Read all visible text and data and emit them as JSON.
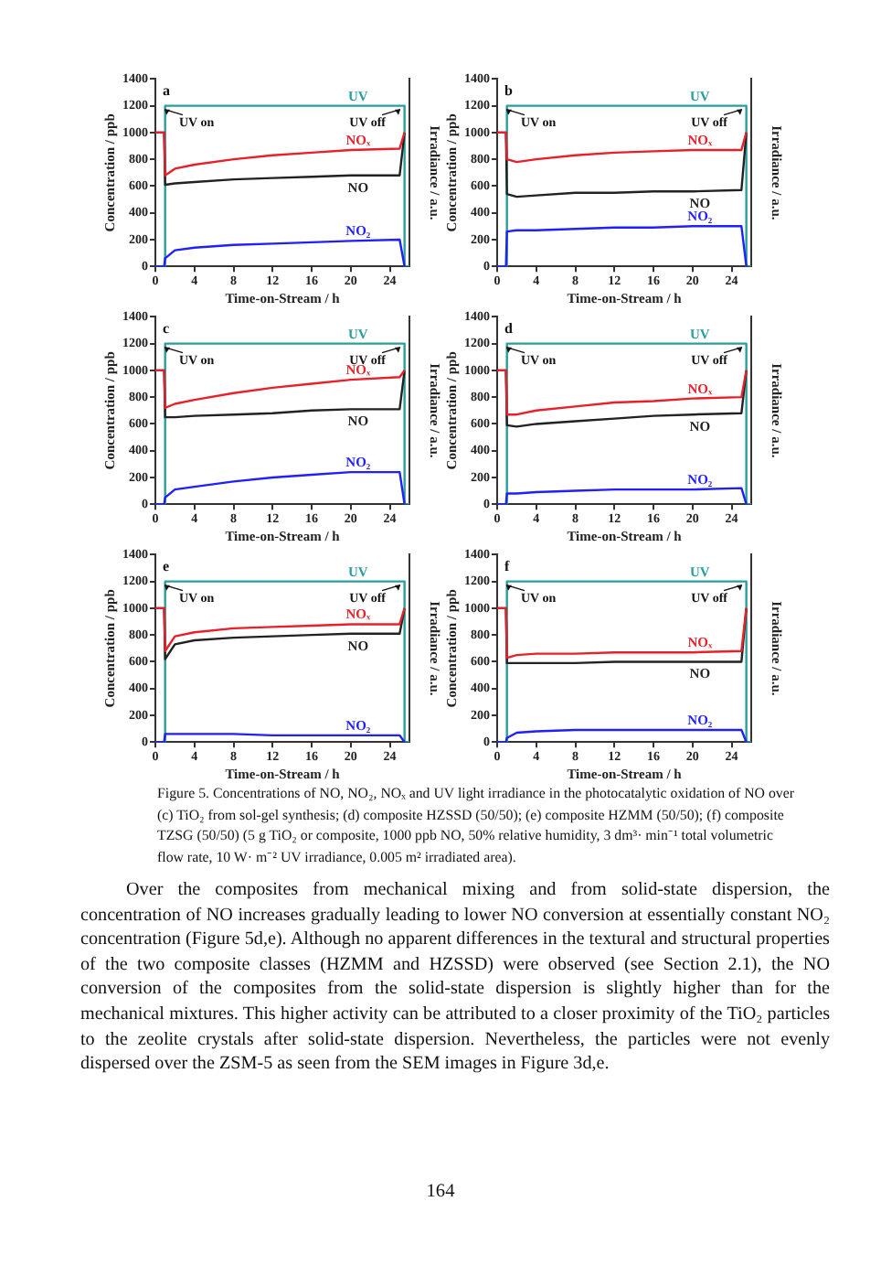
{
  "chart_data": [
    {
      "type": "line",
      "title": "a",
      "xlabel": "Time-on-Stream / h",
      "ylabel": "Concentration / ppb",
      "y2label": "Irradiance / a.u.",
      "x": [
        0,
        0.9,
        1,
        2,
        4,
        8,
        12,
        16,
        20,
        25,
        25.5
      ],
      "xlim": [
        0,
        26
      ],
      "xticks": [
        0,
        4,
        8,
        12,
        16,
        20,
        24
      ],
      "ylim": [
        0,
        1400
      ],
      "yticks": [
        0,
        200,
        400,
        600,
        800,
        1000,
        1200,
        1400
      ],
      "grid": false,
      "legend": false,
      "series": [
        {
          "name": "NOₓ",
          "color": "#e8202a",
          "values": [
            1000,
            1000,
            680,
            730,
            760,
            800,
            830,
            850,
            870,
            880,
            1000
          ]
        },
        {
          "name": "NO",
          "color": "#222222",
          "values": [
            1000,
            1000,
            610,
            620,
            630,
            650,
            660,
            670,
            680,
            680,
            1000
          ]
        },
        {
          "name": "NO₂",
          "color": "#2020ff",
          "values": [
            0,
            0,
            60,
            120,
            140,
            160,
            170,
            180,
            190,
            200,
            0
          ]
        },
        {
          "name": "UV",
          "color": "#2a9d9d",
          "x": [
            0,
            1,
            1,
            25.5,
            25.5,
            26
          ],
          "values": [
            0,
            0,
            1200,
            1200,
            0,
            0
          ]
        }
      ],
      "annotations": [
        "UV on",
        "UV off"
      ]
    },
    {
      "type": "line",
      "title": "b",
      "xlabel": "Time-on-Stream / h",
      "ylabel": "Concentration / ppb",
      "y2label": "Irradiance / a.u.",
      "x": [
        0,
        0.9,
        1,
        2,
        4,
        8,
        12,
        16,
        20,
        25,
        25.5
      ],
      "xlim": [
        0,
        26
      ],
      "xticks": [
        0,
        4,
        8,
        12,
        16,
        20,
        24
      ],
      "ylim": [
        0,
        1400
      ],
      "yticks": [
        0,
        200,
        400,
        600,
        800,
        1000,
        1200,
        1400
      ],
      "grid": false,
      "legend": false,
      "series": [
        {
          "name": "NOₓ",
          "color": "#e8202a",
          "values": [
            1000,
            1000,
            800,
            780,
            800,
            830,
            850,
            860,
            870,
            870,
            1000
          ]
        },
        {
          "name": "NO",
          "color": "#222222",
          "values": [
            1000,
            1000,
            540,
            520,
            530,
            550,
            550,
            560,
            560,
            570,
            1000
          ]
        },
        {
          "name": "NO₂",
          "color": "#2020ff",
          "values": [
            0,
            0,
            260,
            270,
            270,
            280,
            290,
            290,
            300,
            300,
            0
          ]
        },
        {
          "name": "UV",
          "color": "#2a9d9d",
          "x": [
            0,
            1,
            1,
            25.5,
            25.5,
            26
          ],
          "values": [
            0,
            0,
            1200,
            1200,
            0,
            0
          ]
        }
      ],
      "annotations": [
        "UV on",
        "UV off"
      ]
    },
    {
      "type": "line",
      "title": "c",
      "xlabel": "Time-on-Stream / h",
      "ylabel": "Concentration / ppb",
      "y2label": "Irradiance / a.u.",
      "x": [
        0,
        0.9,
        1,
        2,
        4,
        8,
        12,
        16,
        20,
        25,
        25.5
      ],
      "xlim": [
        0,
        26
      ],
      "xticks": [
        0,
        4,
        8,
        12,
        16,
        20,
        24
      ],
      "ylim": [
        0,
        1400
      ],
      "yticks": [
        0,
        200,
        400,
        600,
        800,
        1000,
        1200,
        1400
      ],
      "grid": false,
      "legend": false,
      "series": [
        {
          "name": "NOₓ",
          "color": "#e8202a",
          "values": [
            1000,
            1000,
            720,
            750,
            780,
            830,
            870,
            900,
            930,
            950,
            1000
          ]
        },
        {
          "name": "NO",
          "color": "#222222",
          "values": [
            1000,
            1000,
            650,
            650,
            660,
            670,
            680,
            700,
            710,
            710,
            1000
          ]
        },
        {
          "name": "NO₂",
          "color": "#2020ff",
          "values": [
            0,
            0,
            50,
            110,
            130,
            170,
            200,
            220,
            240,
            240,
            0
          ]
        },
        {
          "name": "UV",
          "color": "#2a9d9d",
          "x": [
            0,
            1,
            1,
            25.5,
            25.5,
            26
          ],
          "values": [
            0,
            0,
            1200,
            1200,
            0,
            0
          ]
        }
      ],
      "annotations": [
        "UV on",
        "UV off"
      ]
    },
    {
      "type": "line",
      "title": "d",
      "xlabel": "Time-on-Stream / h",
      "ylabel": "Concentration / ppb",
      "y2label": "Irradiance / a.u.",
      "x": [
        0,
        0.9,
        1,
        2,
        4,
        8,
        12,
        16,
        20,
        25,
        25.5
      ],
      "xlim": [
        0,
        26
      ],
      "xticks": [
        0,
        4,
        8,
        12,
        16,
        20,
        24
      ],
      "ylim": [
        0,
        1400
      ],
      "yticks": [
        0,
        200,
        400,
        600,
        800,
        1000,
        1200,
        1400
      ],
      "grid": false,
      "legend": false,
      "series": [
        {
          "name": "NOₓ",
          "color": "#e8202a",
          "values": [
            1000,
            1000,
            670,
            670,
            700,
            730,
            760,
            770,
            790,
            800,
            1000
          ]
        },
        {
          "name": "NO",
          "color": "#222222",
          "values": [
            1000,
            1000,
            590,
            580,
            600,
            620,
            640,
            660,
            670,
            680,
            1000
          ]
        },
        {
          "name": "NO₂",
          "color": "#2020ff",
          "values": [
            0,
            0,
            80,
            80,
            90,
            100,
            110,
            110,
            110,
            120,
            0
          ]
        },
        {
          "name": "UV",
          "color": "#2a9d9d",
          "x": [
            0,
            1,
            1,
            25.5,
            25.5,
            26
          ],
          "values": [
            0,
            0,
            1200,
            1200,
            0,
            0
          ]
        }
      ],
      "annotations": [
        "UV on",
        "UV off"
      ]
    },
    {
      "type": "line",
      "title": "e",
      "xlabel": "Time-on-Stream / h",
      "ylabel": "Concentration / ppb",
      "y2label": "Irradiance / a.u.",
      "x": [
        0,
        0.9,
        1,
        2,
        4,
        8,
        12,
        16,
        20,
        25,
        25.5
      ],
      "xlim": [
        0,
        26
      ],
      "xticks": [
        0,
        4,
        8,
        12,
        16,
        20,
        24
      ],
      "ylim": [
        0,
        1400
      ],
      "yticks": [
        0,
        200,
        400,
        600,
        800,
        1000,
        1200,
        1400
      ],
      "grid": false,
      "legend": false,
      "series": [
        {
          "name": "NOₓ",
          "color": "#e8202a",
          "values": [
            1000,
            1000,
            680,
            790,
            820,
            850,
            860,
            870,
            880,
            880,
            1000
          ]
        },
        {
          "name": "NO",
          "color": "#222222",
          "values": [
            1000,
            1000,
            620,
            730,
            760,
            780,
            790,
            800,
            810,
            810,
            1000
          ]
        },
        {
          "name": "NO₂",
          "color": "#2020ff",
          "values": [
            0,
            0,
            60,
            60,
            60,
            60,
            50,
            50,
            50,
            50,
            0
          ]
        },
        {
          "name": "UV",
          "color": "#2a9d9d",
          "x": [
            0,
            1,
            1,
            25.5,
            25.5,
            26
          ],
          "values": [
            0,
            0,
            1200,
            1200,
            0,
            0
          ]
        }
      ],
      "annotations": [
        "UV on",
        "UV off"
      ]
    },
    {
      "type": "line",
      "title": "f",
      "xlabel": "Time-on-Stream / h",
      "ylabel": "Concentration / ppb",
      "y2label": "Irradiance / a.u.",
      "x": [
        0,
        0.9,
        1,
        2,
        4,
        8,
        12,
        16,
        20,
        25,
        25.5
      ],
      "xlim": [
        0,
        26
      ],
      "xticks": [
        0,
        4,
        8,
        12,
        16,
        20,
        24
      ],
      "ylim": [
        0,
        1400
      ],
      "yticks": [
        0,
        200,
        400,
        600,
        800,
        1000,
        1200,
        1400
      ],
      "grid": false,
      "legend": false,
      "series": [
        {
          "name": "NOₓ",
          "color": "#e8202a",
          "values": [
            1000,
            1000,
            630,
            650,
            660,
            660,
            670,
            670,
            670,
            680,
            1000
          ]
        },
        {
          "name": "NO",
          "color": "#222222",
          "values": [
            1000,
            1000,
            590,
            590,
            590,
            590,
            600,
            600,
            600,
            600,
            1000
          ]
        },
        {
          "name": "NO₂",
          "color": "#2020ff",
          "values": [
            0,
            0,
            30,
            70,
            80,
            90,
            90,
            90,
            90,
            90,
            0
          ]
        },
        {
          "name": "UV",
          "color": "#2a9d9d",
          "x": [
            0,
            1,
            1,
            25.5,
            25.5,
            26
          ],
          "values": [
            0,
            0,
            1200,
            1200,
            0,
            0
          ]
        }
      ],
      "annotations": [
        "UV on",
        "UV off"
      ]
    },
    {
      "type": "other",
      "annotations": [
        "Figure 5. Concentrations of NO, NO₂, NOₓ and UV light irradiance in the photocatalytic oxidation of NO over (c) TiO₂ from sol-gel synthesis; (d) composite HZSSD (50/50); (e) composite HZMM (50/50); (f) composite TZSG (50/50) (5 g TiO₂ or composite, 1000 ppb NO, 50% relative humidity, 3 dm³· min⁻¹ total volumetric flow rate, 10 W· m⁻² UV irradiance, 0.005 m² irradiated area).",
        "Over the composites from mechanical mixing and from solid-state dispersion, the concentration of NO increases gradually leading to lower NO conversion at essentially constant NO₂ concentration (Figure 5d,e). Although no apparent differences in the textural and structural properties of the two composite classes (HZMM and HZSSD) were observed (see Section 2.1), the NO conversion of the composites from the solid-state dispersion is slightly higher than for the mechanical mixtures. This higher activity can be attributed to a closer proximity of the TiO₂ particles to the zeolite crystals after solid-state dispersion. Nevertheless, the particles were not evenly dispersed over the ZSM-5 as seen from the SEM images in Figure 3d,e.",
        "164"
      ]
    }
  ]
}
